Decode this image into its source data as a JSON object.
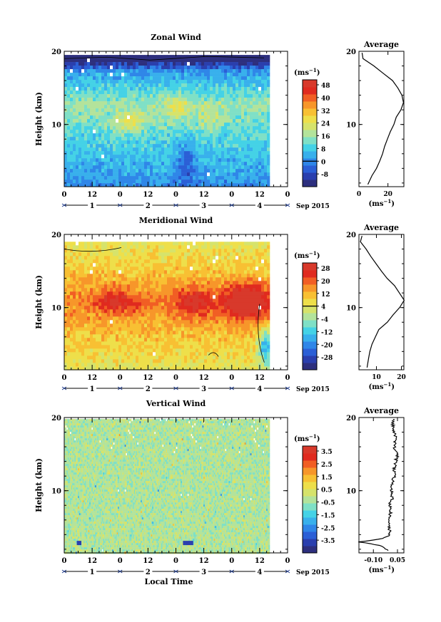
{
  "page": {
    "background": "#ffffff"
  },
  "panels": [
    {
      "title": "Zonal Wind",
      "ylabel": "Height (km)",
      "yticks": [
        "20",
        "10"
      ],
      "xticks": [
        "0",
        "12",
        "0",
        "12",
        "0",
        "12",
        "0",
        "12",
        "0"
      ],
      "days": [
        "1",
        "2",
        "3",
        "4"
      ],
      "month_label": "Sep 2015",
      "colorbar": {
        "unit": "(ms",
        "unit_exp": "−1",
        "unit_close": ")",
        "labels": [
          "48",
          "40",
          "32",
          "24",
          "16",
          "8",
          "0",
          "-8"
        ],
        "colors": [
          "#2d2f7e",
          "#2a3fae",
          "#2b5fd6",
          "#2f86e8",
          "#38b0ec",
          "#44d2e6",
          "#7fe0c6",
          "#b3e39b",
          "#d6e36b",
          "#eedf4a",
          "#f8c033",
          "#f7962a",
          "#f15e24",
          "#e02a1f",
          "#d8392b"
        ],
        "zero_index": 6
      },
      "profile": {
        "title": "Average",
        "xticks": [
          "0",
          "20"
        ],
        "xlabel": "(ms",
        "xlabel_exp": "−1",
        "xlabel_close": ")",
        "yticks": [
          "20",
          "10"
        ]
      }
    },
    {
      "title": "Meridional Wind",
      "ylabel": "Height (km)",
      "yticks": [
        "20",
        "10"
      ],
      "xticks": [
        "0",
        "12",
        "0",
        "12",
        "0",
        "12",
        "0",
        "12",
        "0"
      ],
      "days": [
        "1",
        "2",
        "3",
        "4"
      ],
      "month_label": "Sep 2015",
      "colorbar": {
        "unit": "(ms",
        "unit_exp": "−1",
        "unit_close": ")",
        "labels": [
          "28",
          "20",
          "12",
          "4",
          "-4",
          "-12",
          "-20",
          "-28"
        ],
        "colors": [
          "#2d2f7e",
          "#2a3fae",
          "#2b5fd6",
          "#2f86e8",
          "#38b0ec",
          "#44d2e6",
          "#7fe0c6",
          "#b3e39b",
          "#d6e36b",
          "#eedf4a",
          "#f8c033",
          "#f7962a",
          "#f15e24",
          "#e02a1f",
          "#d8392b"
        ],
        "zero_index": 3
      },
      "profile": {
        "title": "Average",
        "xticks": [
          "10",
          "20"
        ],
        "xlabel": "(ms",
        "xlabel_exp": "−1",
        "xlabel_close": ")",
        "yticks": [
          "20",
          "10"
        ]
      }
    },
    {
      "title": "Vertical Wind",
      "ylabel": "Height (km)",
      "yticks": [
        "20",
        "10"
      ],
      "xticks": [
        "0",
        "12",
        "0",
        "12",
        "0",
        "12",
        "0",
        "12",
        "0"
      ],
      "days": [
        "1",
        "2",
        "3",
        "4"
      ],
      "month_label": "Sep 2015",
      "xlabel": "Local Time",
      "colorbar": {
        "unit": "(ms",
        "unit_exp": "−1",
        "unit_close": ")",
        "labels": [
          "3.5",
          "2.5",
          "1.5",
          "0.5",
          "-0.5",
          "-1.5",
          "-2.5",
          "-3.5"
        ],
        "colors": [
          "#2d2f7e",
          "#2a3fae",
          "#2b5fd6",
          "#2f86e8",
          "#38b0ec",
          "#44d2e6",
          "#7fe0c6",
          "#b3e39b",
          "#d6e36b",
          "#eedf4a",
          "#f8c033",
          "#f7962a",
          "#f15e24",
          "#e02a1f",
          "#d8392b"
        ],
        "zero_index": -1
      },
      "profile": {
        "title": "Average",
        "xticks": [
          "-0.10",
          "0.05"
        ],
        "xlabel": "(ms",
        "xlabel_exp": "−1",
        "xlabel_close": ")",
        "yticks": [
          "20",
          "10"
        ]
      }
    }
  ],
  "chart_data": [
    {
      "type": "heatmap",
      "title": "Zonal Wind",
      "ylabel": "Height (km)",
      "ylim": [
        1.5,
        20
      ],
      "x_range_hours": [
        0,
        96
      ],
      "x_unit": "hours local time from 0 LT 1 Sep 2015",
      "data_end_hour": 88,
      "data_top_km": 19.5,
      "color_scale": [
        -8,
        48
      ],
      "zero_contour": true,
      "profile": {
        "name": "Average",
        "heights_km": [
          1.8,
          3,
          4,
          5,
          6,
          7,
          8,
          9,
          10,
          11,
          12,
          13,
          14,
          15,
          16,
          17,
          18,
          19,
          19.8
        ],
        "values": [
          6,
          9,
          12,
          14,
          16,
          18,
          20,
          22,
          24,
          26,
          29,
          31,
          30,
          27,
          23,
          17,
          10,
          3,
          2
        ],
        "xlim": [
          0,
          31
        ]
      }
    },
    {
      "type": "heatmap",
      "title": "Meridional Wind",
      "ylabel": "Height (km)",
      "ylim": [
        1.5,
        20
      ],
      "x_range_hours": [
        0,
        96
      ],
      "data_end_hour": 88,
      "data_top_km": 19.0,
      "color_scale": [
        -28,
        28
      ],
      "zero_contour": true,
      "profile": {
        "name": "Average",
        "heights_km": [
          1.8,
          3,
          4,
          5,
          6,
          7,
          8,
          9,
          10,
          11,
          12,
          13,
          14,
          15,
          16,
          17,
          18,
          19,
          19.8
        ],
        "values": [
          6,
          6.5,
          7,
          8,
          9.5,
          11,
          14,
          17,
          19.5,
          21,
          19,
          17,
          14.5,
          12,
          10,
          8,
          5.5,
          3.5,
          4
        ],
        "xlim": [
          3,
          21
        ]
      }
    },
    {
      "type": "heatmap",
      "title": "Vertical Wind",
      "xlabel": "Local Time",
      "ylabel": "Height (km)",
      "ylim": [
        1.5,
        20
      ],
      "x_range_hours": [
        0,
        96
      ],
      "data_end_hour": 88,
      "data_top_km": 19.8,
      "color_scale": [
        -3.5,
        3.5
      ],
      "zero_contour": false,
      "profile": {
        "name": "Average",
        "heights_km": [
          1.8,
          2.5,
          3,
          3.5,
          4,
          5,
          6,
          7,
          8,
          9,
          10,
          11,
          12,
          13,
          14,
          15,
          16,
          17,
          18,
          19,
          19.8
        ],
        "values": [
          0.0,
          -0.05,
          -0.19,
          -0.03,
          0.0,
          0.0,
          -0.01,
          0.01,
          0.0,
          0.02,
          0.01,
          0.02,
          0.03,
          0.03,
          0.04,
          0.05,
          0.03,
          0.04,
          0.03,
          0.02,
          0.02
        ],
        "xlim": [
          -0.19,
          0.09
        ]
      }
    }
  ]
}
